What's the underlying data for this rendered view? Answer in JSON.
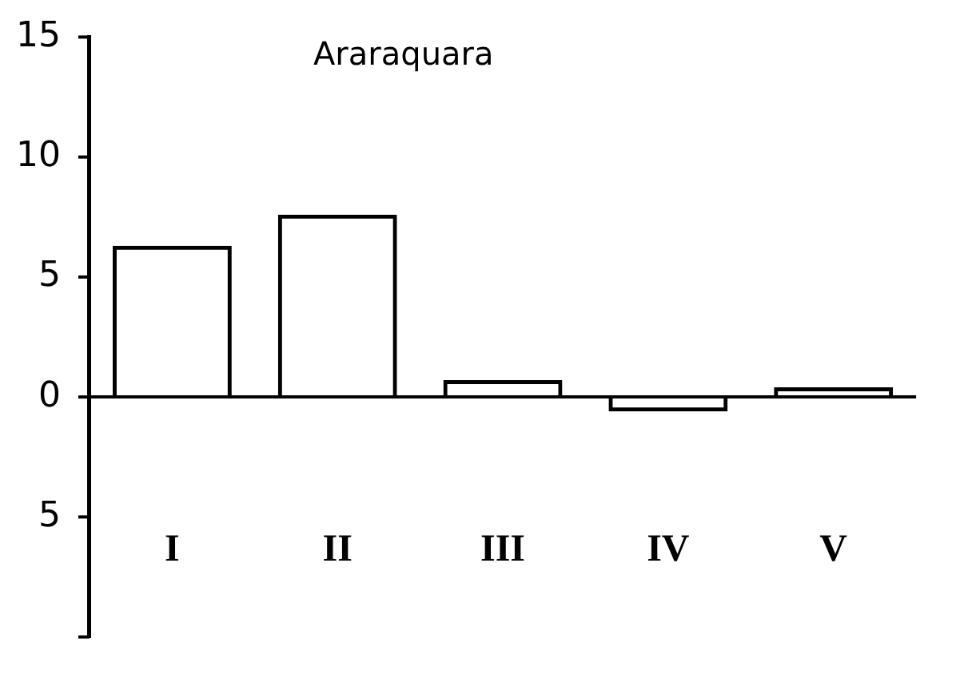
{
  "chart_data": {
    "type": "bar",
    "title": "Araraquara",
    "categories": [
      "I",
      "II",
      "III",
      "IV",
      "V"
    ],
    "values": [
      6.3,
      7.6,
      0.7,
      -0.6,
      0.4
    ],
    "color": "#000000",
    "ylim": [
      -10,
      15
    ],
    "yticks": [
      15,
      10,
      5,
      0,
      {
        "value": -5,
        "label": "5"
      },
      {
        "value": -10,
        "label": null
      }
    ],
    "ref_lines": [
      {
        "axis": "y",
        "value": 0,
        "color": "#000000"
      }
    ],
    "grid": false,
    "legend": false
  }
}
